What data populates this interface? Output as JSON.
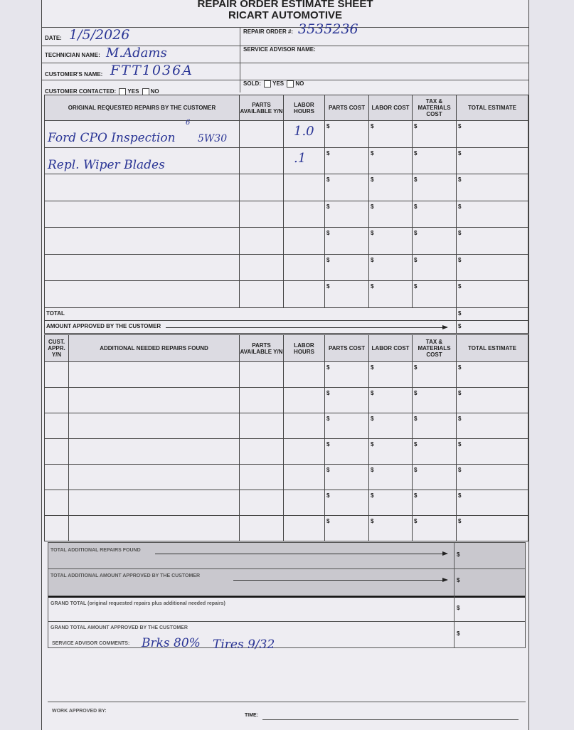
{
  "header": {
    "title": "REPAIR ORDER ESTIMATE SHEET",
    "company": "RICART AUTOMOTIVE"
  },
  "info": {
    "date_label": "DATE:",
    "date": "1/5/2026",
    "repair_order_label": "REPAIR ORDER #:",
    "repair_order": "3535236",
    "technician_label": "TECHNICIAN NAME:",
    "technician": "M.Adams",
    "service_advisor_label": "SERVICE ADVISOR NAME:",
    "customer_label": "CUSTOMER'S NAME:",
    "customer": "FTT1036A",
    "contacted_label": "CUSTOMER CONTACTED:",
    "sold_label": "SOLD:",
    "yes": "YES",
    "no": "NO"
  },
  "table1": {
    "headers": [
      "ORIGINAL REQUESTED REPAIRS BY THE CUSTOMER",
      "PARTS AVAILABLE Y/N",
      "LABOR HOURS",
      "PARTS COST",
      "LABOR COST",
      "TAX & MATERIALS COST",
      "TOTAL ESTIMATE"
    ],
    "rows": [
      {
        "repair": "Ford CPO Inspection",
        "note": "5W30",
        "superscript": "6",
        "hours": "1.0"
      },
      {
        "repair": "Repl. Wiper Blades",
        "hours": ".1"
      },
      {},
      {},
      {},
      {},
      {}
    ],
    "currency": "$",
    "total_label": "TOTAL",
    "approved_label": "AMOUNT APPROVED BY THE CUSTOMER"
  },
  "table2": {
    "headers": [
      "CUST. APPR. Y/N",
      "ADDITIONAL NEEDED REPAIRS FOUND",
      "PARTS AVAILABLE Y/N",
      "LABOR HOURS",
      "PARTS COST",
      "LABOR COST",
      "TAX & MATERIALS COST",
      "TOTAL ESTIMATE"
    ]
  },
  "totals": {
    "additional_found": "TOTAL ADDITIONAL REPAIRS FOUND",
    "additional_approved": "TOTAL ADDITIONAL AMOUNT APPROVED BY THE CUSTOMER",
    "grand_total": "GRAND TOTAL (original requested repairs plus additional needed repairs)",
    "grand_approved": "GRAND TOTAL AMOUNT APPROVED BY THE CUSTOMER"
  },
  "comments": {
    "label": "SERVICE ADVISOR COMMENTS:",
    "text": "Brks 80%",
    "tires": "Tires 9/32"
  },
  "footer": {
    "work_approved_label": "WORK APPROVED BY:",
    "time_label": "TIME:"
  }
}
